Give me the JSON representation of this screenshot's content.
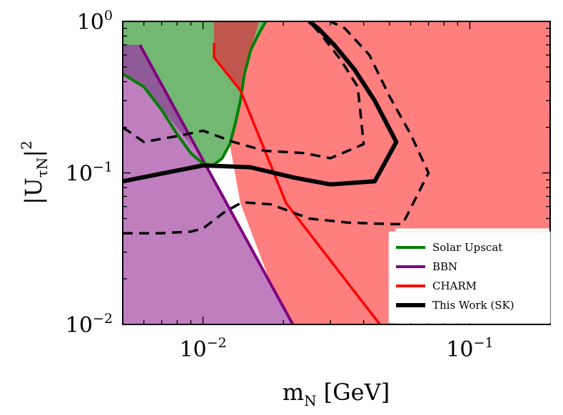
{
  "chart_data": {
    "type": "line",
    "title": "",
    "xlabel": {
      "base": "m",
      "sub": "N",
      "unit": "[GeV]"
    },
    "ylabel": {
      "text": "|U",
      "sub": "τN",
      "close": "|",
      "sup": "2"
    },
    "xscale": "log",
    "yscale": "log",
    "xlim": [
      0.005,
      0.2
    ],
    "ylim": [
      0.01,
      1.0
    ],
    "x_ticks": [
      {
        "value": 0.01,
        "base": "10",
        "exp": "−2"
      },
      {
        "value": 0.1,
        "base": "10",
        "exp": "−1"
      }
    ],
    "y_ticks": [
      {
        "value": 0.01,
        "base": "10",
        "exp": "−2"
      },
      {
        "value": 0.1,
        "base": "10",
        "exp": "−1"
      },
      {
        "value": 1.0,
        "base": "10",
        "exp": "0"
      }
    ],
    "legend_position": "lower-right",
    "legend": [
      {
        "label": "Solar Upscat",
        "color": "#008000"
      },
      {
        "label": "BBN",
        "color": "#800080"
      },
      {
        "label": "CHARM",
        "color": "#ff0000"
      },
      {
        "label": "This Work (SK)",
        "color": "#000000"
      }
    ],
    "regions": [
      {
        "name": "charm-region",
        "fill": "#ff7f7f",
        "x": [
          0.011,
          0.016,
          0.2,
          0.2,
          0.0527,
          0.0527,
          0.0205,
          0.0138,
          0.011
        ],
        "y": [
          0.58,
          1.0,
          1.0,
          0.043,
          0.043,
          0.01,
          0.01,
          0.063,
          0.58
        ]
      },
      {
        "name": "solar-upscat-region",
        "fill": "#72b872",
        "x": [
          0.005,
          0.0172,
          0.0163,
          0.0151,
          0.0143,
          0.0138,
          0.0132,
          0.0126,
          0.0118,
          0.0109,
          0.01,
          0.009,
          0.008,
          0.007,
          0.006,
          0.005
        ],
        "y": [
          1.0,
          1.0,
          0.85,
          0.65,
          0.45,
          0.3,
          0.21,
          0.155,
          0.125,
          0.112,
          0.115,
          0.135,
          0.18,
          0.26,
          0.37,
          0.45
        ]
      },
      {
        "name": "overlap-region",
        "fill": "#c0574f",
        "x": [
          0.011,
          0.0162,
          0.0151,
          0.0143,
          0.0139,
          0.011
        ],
        "y": [
          1.0,
          1.0,
          0.65,
          0.45,
          0.35,
          0.58
        ]
      },
      {
        "name": "bbn-region",
        "fill": "#bf7fbf",
        "x": [
          0.005,
          0.0058,
          0.0217,
          0.005
        ],
        "y": [
          0.7,
          0.7,
          0.01,
          0.01
        ]
      },
      {
        "name": "bbn-solar-overlap-region",
        "fill": "#8e5a97",
        "x": [
          0.005,
          0.0058,
          0.0068,
          0.008,
          0.0091,
          0.006,
          0.005
        ],
        "y": [
          0.7,
          0.7,
          0.43,
          0.25,
          0.15,
          0.37,
          0.45
        ]
      }
    ],
    "series": [
      {
        "name": "BBN",
        "color": "#800080",
        "width": 4,
        "dash": "",
        "x": [
          0.0058,
          0.0217
        ],
        "y": [
          0.7,
          0.01
        ]
      },
      {
        "name": "Solar Upscat",
        "color": "#008000",
        "width": 4,
        "dash": "",
        "x": [
          0.005,
          0.006,
          0.007,
          0.008,
          0.009,
          0.01,
          0.0109,
          0.0118,
          0.0126,
          0.0132,
          0.0138,
          0.0143,
          0.0151,
          0.0163,
          0.0172
        ],
        "y": [
          0.45,
          0.37,
          0.26,
          0.18,
          0.135,
          0.115,
          0.112,
          0.125,
          0.155,
          0.21,
          0.3,
          0.45,
          0.65,
          0.85,
          1.0
        ]
      },
      {
        "name": "CHARM",
        "color": "#ff0000",
        "width": 3.5,
        "dash": "",
        "x": [
          0.011,
          0.011,
          0.0138,
          0.0205,
          0.046
        ],
        "y": [
          0.72,
          0.58,
          0.35,
          0.063,
          0.01
        ]
      },
      {
        "name": "This Work (SK)",
        "color": "#000000",
        "width": 6,
        "dash": "",
        "x": [
          0.005,
          0.007,
          0.01,
          0.015,
          0.022,
          0.03,
          0.044,
          0.053,
          0.044,
          0.037,
          0.031,
          0.027,
          0.025
        ],
        "y": [
          0.088,
          0.099,
          0.112,
          0.109,
          0.093,
          0.084,
          0.088,
          0.16,
          0.3,
          0.48,
          0.7,
          0.9,
          1.0
        ]
      },
      {
        "name": "SK upper dashed band",
        "color": "#000000",
        "width": 3.5,
        "dash": "14 9",
        "x": [
          0.005,
          0.006,
          0.008,
          0.01,
          0.013,
          0.017,
          0.024,
          0.03,
          0.04,
          0.038,
          0.033,
          0.028,
          0.025
        ],
        "y": [
          0.2,
          0.16,
          0.175,
          0.19,
          0.16,
          0.14,
          0.135,
          0.125,
          0.155,
          0.37,
          0.55,
          0.8,
          1.0
        ]
      },
      {
        "name": "SK outer dashed band",
        "color": "#000000",
        "width": 3.5,
        "dash": "14 9",
        "x": [
          0.005,
          0.007,
          0.009,
          0.01,
          0.012,
          0.014,
          0.018,
          0.025,
          0.035,
          0.05,
          0.056,
          0.07,
          0.066,
          0.06,
          0.05,
          0.042,
          0.034,
          0.03
        ],
        "y": [
          0.04,
          0.04,
          0.041,
          0.043,
          0.055,
          0.064,
          0.062,
          0.05,
          0.047,
          0.046,
          0.046,
          0.1,
          0.125,
          0.18,
          0.32,
          0.6,
          0.9,
          1.0
        ]
      }
    ]
  }
}
